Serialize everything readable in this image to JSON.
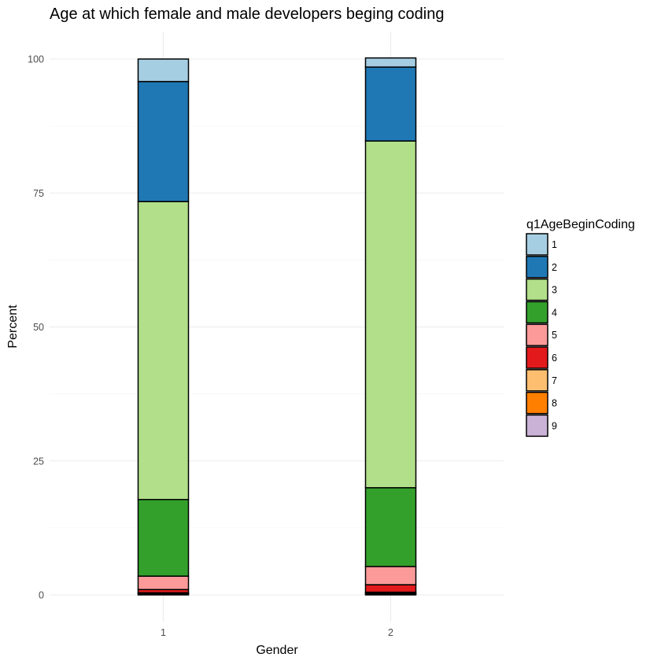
{
  "chart_data": {
    "type": "bar",
    "stacked": true,
    "title": "Age at which female and male developers beging coding",
    "xlabel": "Gender",
    "ylabel": "Percent",
    "categories": [
      "1",
      "2"
    ],
    "ylim": [
      0,
      100
    ],
    "yticks": [
      0,
      25,
      50,
      75,
      100
    ],
    "grid": true,
    "legend": {
      "title": "q1AgeBeginCoding",
      "position": "right"
    },
    "series": [
      {
        "name": "9",
        "color": "#cab2d6",
        "values": [
          0.2,
          0.2
        ]
      },
      {
        "name": "8",
        "color": "#ff7f00",
        "values": [
          0.1,
          0.1
        ]
      },
      {
        "name": "7",
        "color": "#fdbf6f",
        "values": [
          0.1,
          0.2
        ]
      },
      {
        "name": "6",
        "color": "#e31a1c",
        "values": [
          0.6,
          1.4
        ]
      },
      {
        "name": "5",
        "color": "#fb9a99",
        "values": [
          2.5,
          3.4
        ]
      },
      {
        "name": "4",
        "color": "#33a02c",
        "values": [
          14.3,
          14.7
        ]
      },
      {
        "name": "3",
        "color": "#b2df8a",
        "values": [
          55.6,
          64.7
        ]
      },
      {
        "name": "2",
        "color": "#1f78b4",
        "values": [
          22.4,
          13.8
        ]
      },
      {
        "name": "1",
        "color": "#a6cee3",
        "values": [
          4.2,
          1.7
        ]
      }
    ],
    "legend_order": [
      "1",
      "2",
      "3",
      "4",
      "5",
      "6",
      "7",
      "8",
      "9"
    ]
  }
}
